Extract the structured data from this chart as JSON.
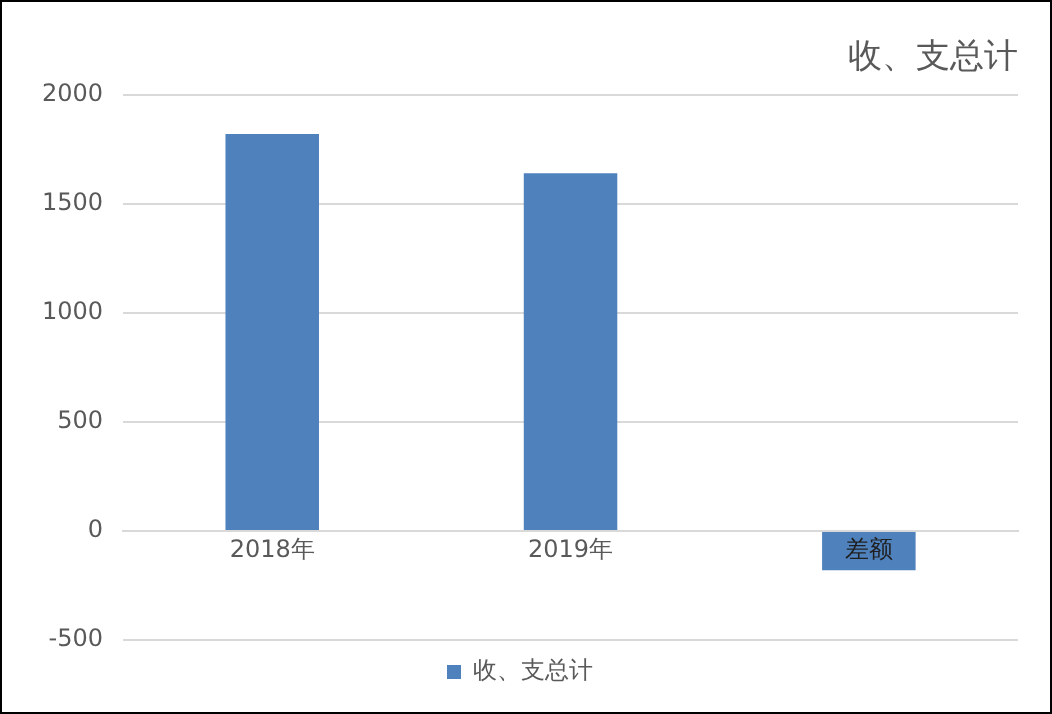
{
  "chart_data": {
    "type": "bar",
    "title": "收、支总计",
    "categories": [
      "2018年",
      "2019年",
      "差额"
    ],
    "series": [
      {
        "name": "收、支总计",
        "color": "#4f81bd",
        "values": [
          1820,
          1640,
          -180
        ]
      }
    ],
    "ylim": [
      -500,
      2000
    ],
    "yticks": [
      -500,
      0,
      500,
      1000,
      1500,
      2000
    ],
    "grid": "y",
    "legend": "bottom"
  }
}
